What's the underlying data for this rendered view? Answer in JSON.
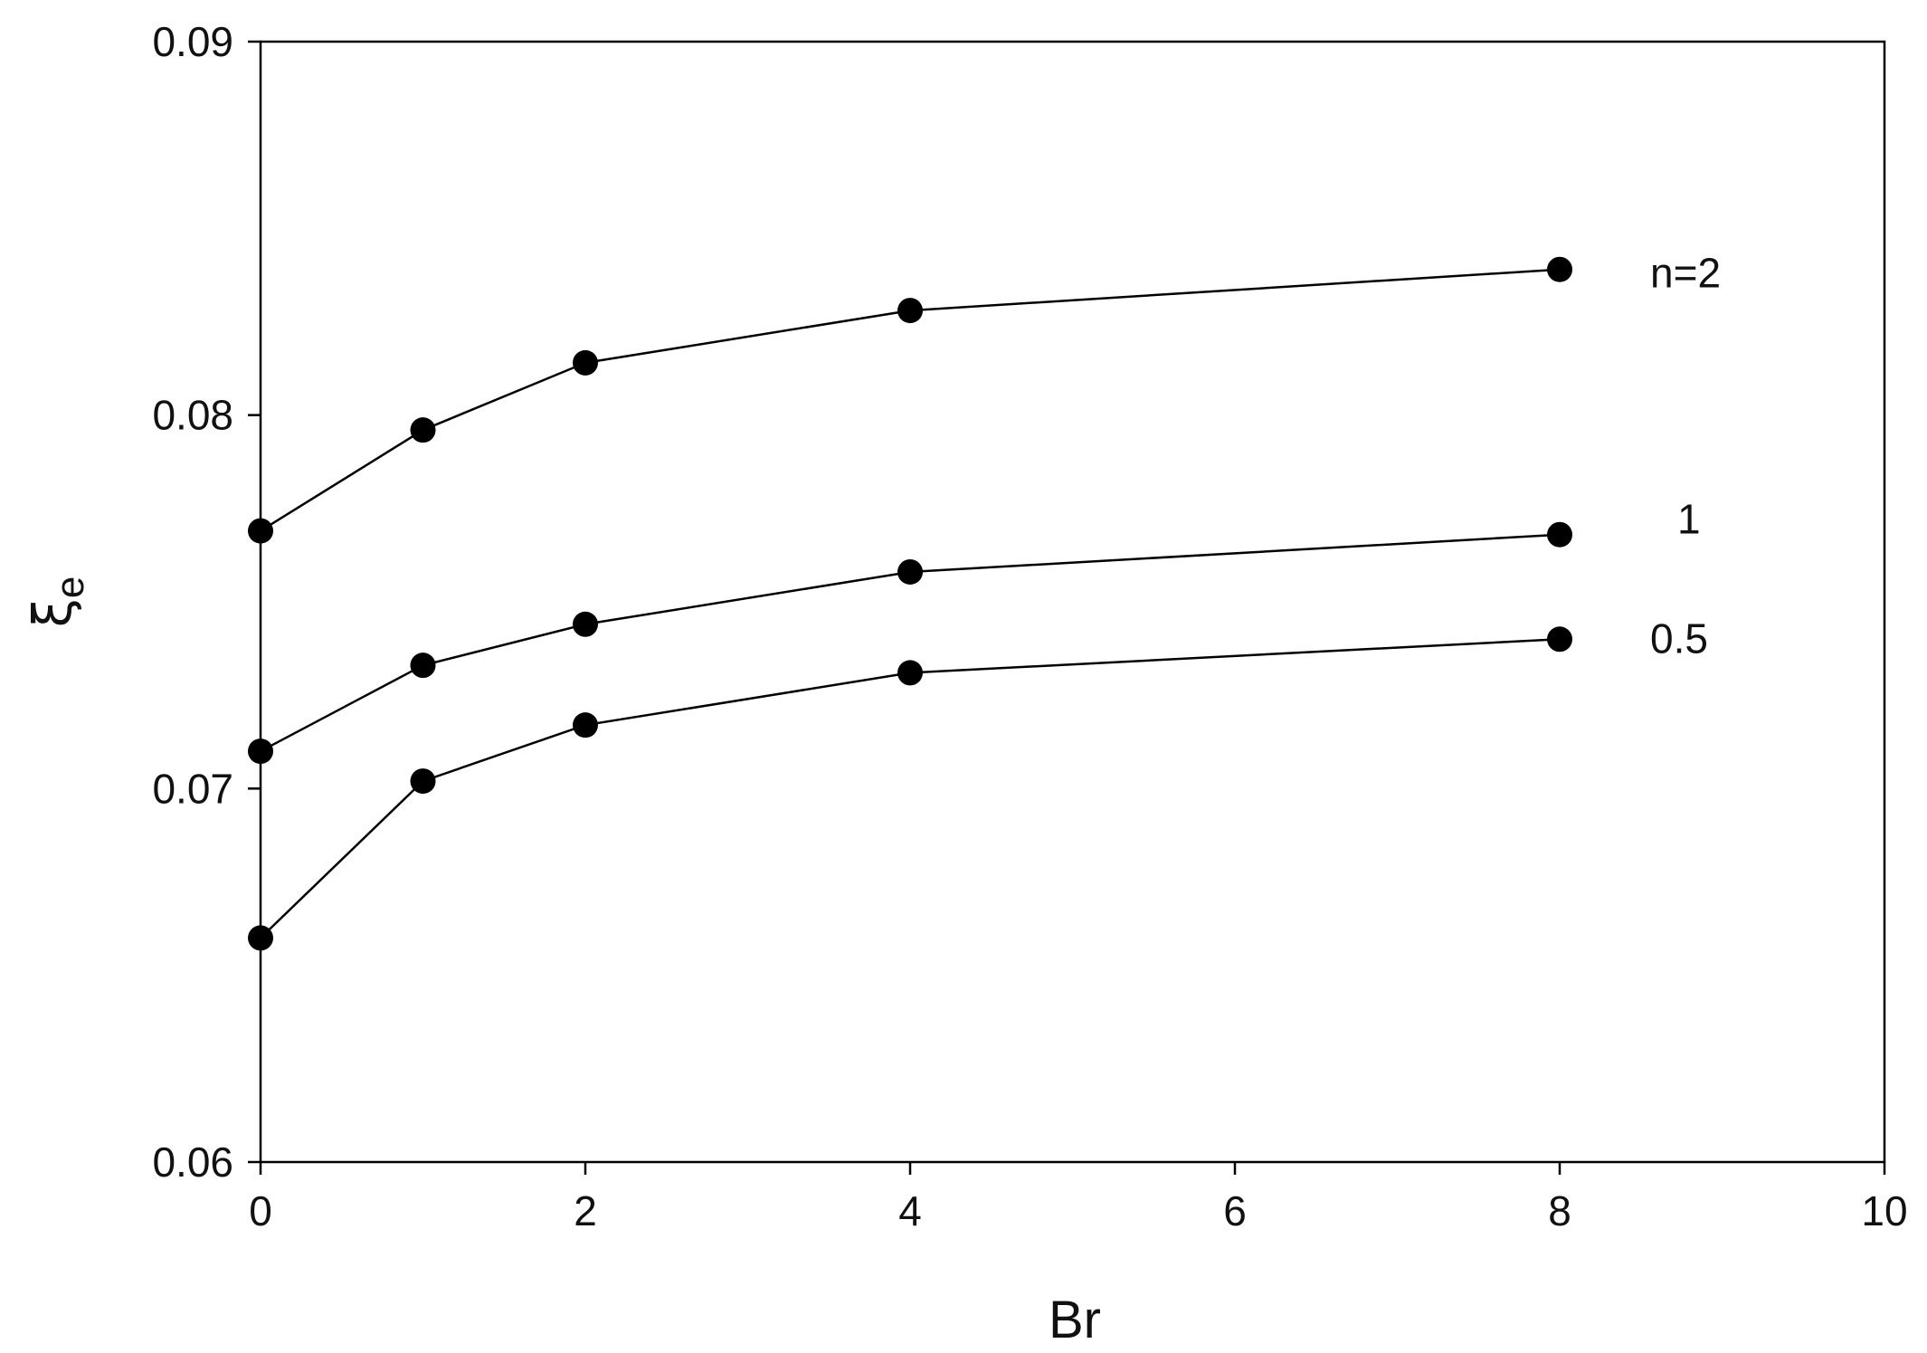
{
  "chart_data": {
    "type": "line",
    "xlabel": "Br",
    "ylabel": {
      "symbol": "ξ",
      "subscript": "e"
    },
    "xlim": [
      0,
      10
    ],
    "ylim": [
      0.06,
      0.09
    ],
    "xticks": [
      0,
      2,
      4,
      6,
      8,
      10
    ],
    "xtick_labels": [
      "0",
      "2",
      "4",
      "6",
      "8",
      "10"
    ],
    "yticks": [
      0.06,
      0.07,
      0.08,
      0.09
    ],
    "ytick_labels": [
      "0.06",
      "0.07",
      "0.08",
      "0.09"
    ],
    "grid": false,
    "marker": "filled-circle",
    "series_color": "#000000",
    "x": [
      0,
      1,
      2,
      4,
      8
    ],
    "series": [
      {
        "name": "n=2",
        "values": [
          0.0769,
          0.0796,
          0.0814,
          0.0828,
          0.0839
        ]
      },
      {
        "name": "1",
        "values": [
          0.071,
          0.0733,
          0.0744,
          0.0758,
          0.0768
        ]
      },
      {
        "name": "0.5",
        "values": [
          0.066,
          0.0702,
          0.0717,
          0.0731,
          0.074
        ]
      }
    ]
  }
}
